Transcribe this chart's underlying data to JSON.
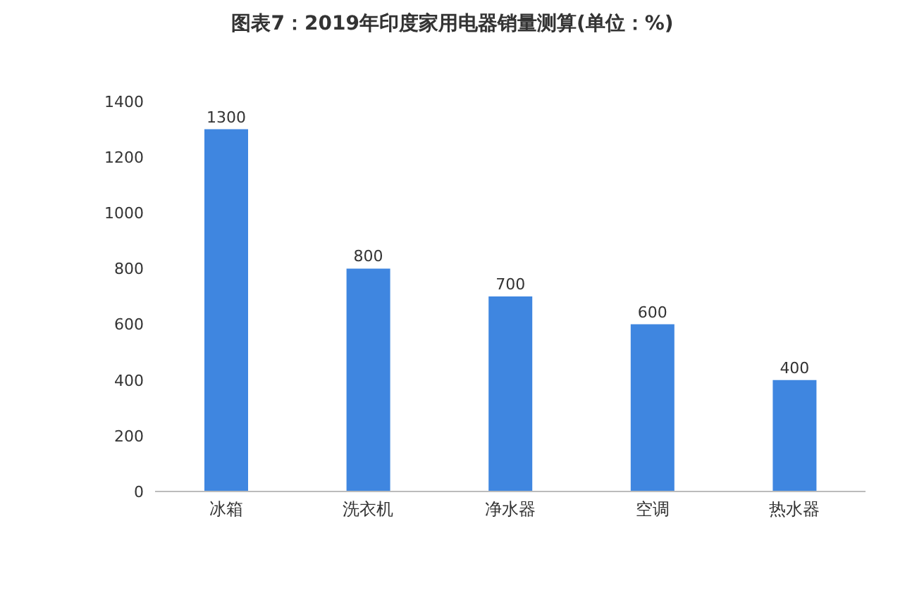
{
  "chart_data": {
    "type": "bar",
    "title": "图表7：2019年印度家用电器销量测算(单位：%)",
    "categories": [
      "冰箱",
      "洗衣机",
      "净水器",
      "空调",
      "热水器"
    ],
    "values": [
      1300,
      800,
      700,
      600,
      400
    ],
    "color": "#3f86e0",
    "ylim": [
      0,
      1400
    ],
    "yticks": [
      0,
      200,
      400,
      600,
      800,
      1000,
      1200,
      1400
    ],
    "grid": false,
    "data_labels": true,
    "legend": false
  }
}
